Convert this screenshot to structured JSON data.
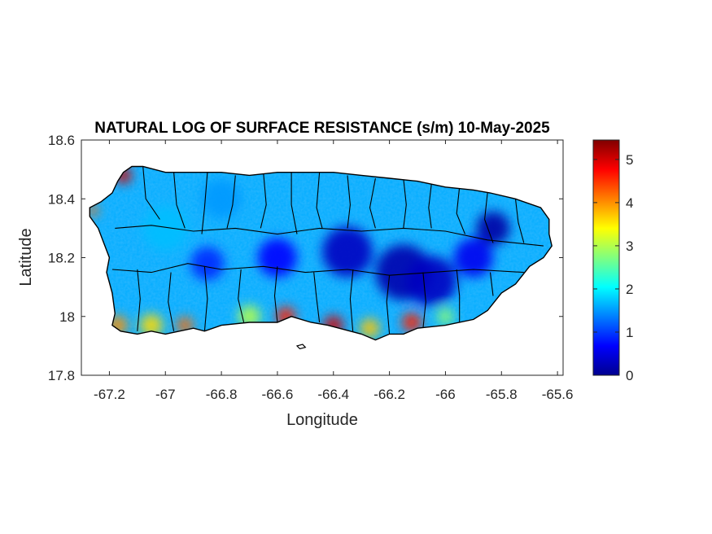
{
  "map": {
    "title": "NATURAL LOG OF SURFACE RESISTANCE (s/m) 10-May-2025",
    "xlabel": "Longitude",
    "ylabel": "Latitude",
    "xlim": [
      -67.3,
      -65.58
    ],
    "ylim": [
      17.8,
      18.6
    ],
    "xticks": [
      -67.2,
      -67.0,
      -66.8,
      -66.6,
      -66.4,
      -66.2,
      -66.0,
      -65.8,
      -65.6
    ],
    "xtick_labels": [
      "-67.2",
      "-67",
      "-66.8",
      "-66.6",
      "-66.4",
      "-66.2",
      "-66",
      "-65.8",
      "-65.6"
    ],
    "yticks": [
      17.8,
      18.0,
      18.2,
      18.4,
      18.6
    ],
    "ytick_labels": [
      "17.8",
      "18",
      "18.2",
      "18.4",
      "18.6"
    ],
    "colormap": "jet",
    "background_color": "#ffffff",
    "outline_color": "#000000",
    "colorbar": {
      "limits": [
        0,
        5.45
      ],
      "ticks": [
        0,
        1,
        2,
        3,
        4,
        5
      ],
      "tick_labels": [
        "0",
        "1",
        "2",
        "3",
        "4",
        "5"
      ]
    },
    "island_outline": [
      [
        -67.27,
        18.37
      ],
      [
        -67.23,
        18.39
      ],
      [
        -67.19,
        18.42
      ],
      [
        -67.17,
        18.46
      ],
      [
        -67.15,
        18.49
      ],
      [
        -67.12,
        18.51
      ],
      [
        -67.08,
        18.51
      ],
      [
        -67.0,
        18.49
      ],
      [
        -66.9,
        18.49
      ],
      [
        -66.8,
        18.49
      ],
      [
        -66.7,
        18.48
      ],
      [
        -66.6,
        18.49
      ],
      [
        -66.5,
        18.49
      ],
      [
        -66.4,
        18.49
      ],
      [
        -66.3,
        18.48
      ],
      [
        -66.2,
        18.47
      ],
      [
        -66.1,
        18.46
      ],
      [
        -66.0,
        18.44
      ],
      [
        -65.9,
        18.43
      ],
      [
        -65.84,
        18.42
      ],
      [
        -65.75,
        18.4
      ],
      [
        -65.66,
        18.37
      ],
      [
        -65.63,
        18.33
      ],
      [
        -65.63,
        18.28
      ],
      [
        -65.62,
        18.24
      ],
      [
        -65.65,
        18.2
      ],
      [
        -65.7,
        18.17
      ],
      [
        -65.75,
        18.11
      ],
      [
        -65.8,
        18.08
      ],
      [
        -65.85,
        18.02
      ],
      [
        -65.9,
        17.99
      ],
      [
        -66.0,
        17.97
      ],
      [
        -66.1,
        17.96
      ],
      [
        -66.15,
        17.94
      ],
      [
        -66.2,
        17.94
      ],
      [
        -66.25,
        17.92
      ],
      [
        -66.3,
        17.94
      ],
      [
        -66.38,
        17.96
      ],
      [
        -66.42,
        17.97
      ],
      [
        -66.48,
        17.98
      ],
      [
        -66.55,
        18.0
      ],
      [
        -66.6,
        17.98
      ],
      [
        -66.7,
        17.98
      ],
      [
        -66.8,
        17.97
      ],
      [
        -66.86,
        17.95
      ],
      [
        -66.9,
        17.96
      ],
      [
        -66.95,
        17.95
      ],
      [
        -67.0,
        17.94
      ],
      [
        -67.05,
        17.95
      ],
      [
        -67.1,
        17.94
      ],
      [
        -67.16,
        17.95
      ],
      [
        -67.19,
        17.97
      ],
      [
        -67.18,
        18.01
      ],
      [
        -67.19,
        18.08
      ],
      [
        -67.21,
        18.15
      ],
      [
        -67.2,
        18.2
      ],
      [
        -67.22,
        18.25
      ],
      [
        -67.24,
        18.3
      ],
      [
        -67.27,
        18.34
      ]
    ],
    "caja_de_muerto_outline": [
      [
        -66.53,
        17.9
      ],
      [
        -66.51,
        17.905
      ],
      [
        -66.5,
        17.895
      ],
      [
        -66.52,
        17.89
      ]
    ],
    "intensity_hotspots": [
      {
        "lon": -67.15,
        "lat": 18.48,
        "value": 5.0,
        "radius": 0.03
      },
      {
        "lon": -67.26,
        "lat": 18.36,
        "value": 4.2,
        "radius": 0.02
      },
      {
        "lon": -67.17,
        "lat": 17.97,
        "value": 4.0,
        "radius": 0.035
      },
      {
        "lon": -67.05,
        "lat": 17.97,
        "value": 3.6,
        "radius": 0.04
      },
      {
        "lon": -66.93,
        "lat": 17.97,
        "value": 4.2,
        "radius": 0.03
      },
      {
        "lon": -66.7,
        "lat": 18.0,
        "value": 3.0,
        "radius": 0.04
      },
      {
        "lon": -66.57,
        "lat": 18.0,
        "value": 4.6,
        "radius": 0.035
      },
      {
        "lon": -66.4,
        "lat": 17.97,
        "value": 5.0,
        "radius": 0.035
      },
      {
        "lon": -66.27,
        "lat": 17.96,
        "value": 3.7,
        "radius": 0.035
      },
      {
        "lon": -66.12,
        "lat": 17.98,
        "value": 4.6,
        "radius": 0.035
      },
      {
        "lon": -66.0,
        "lat": 18.0,
        "value": 2.8,
        "radius": 0.03
      },
      {
        "lon": -66.35,
        "lat": 18.22,
        "value": 0.35,
        "radius": 0.09
      },
      {
        "lon": -66.15,
        "lat": 18.15,
        "value": 0.25,
        "radius": 0.1
      },
      {
        "lon": -66.05,
        "lat": 18.12,
        "value": 0.35,
        "radius": 0.09
      },
      {
        "lon": -65.83,
        "lat": 18.3,
        "value": 0.2,
        "radius": 0.06
      },
      {
        "lon": -66.6,
        "lat": 18.2,
        "value": 0.7,
        "radius": 0.07
      },
      {
        "lon": -66.85,
        "lat": 18.18,
        "value": 0.9,
        "radius": 0.06
      },
      {
        "lon": -65.9,
        "lat": 18.2,
        "value": 0.6,
        "radius": 0.07
      },
      {
        "lon": -67.0,
        "lat": 18.3,
        "value": 1.7,
        "radius": 0.08
      },
      {
        "lon": -66.8,
        "lat": 18.4,
        "value": 1.5,
        "radius": 0.07
      }
    ],
    "municipality_boundaries": [
      [
        [
          -67.08,
          18.51
        ],
        [
          -67.07,
          18.4
        ],
        [
          -67.02,
          18.33
        ]
      ],
      [
        [
          -66.97,
          18.49
        ],
        [
          -66.96,
          18.38
        ],
        [
          -66.93,
          18.3
        ]
      ],
      [
        [
          -66.85,
          18.49
        ],
        [
          -66.86,
          18.37
        ],
        [
          -66.87,
          18.28
        ]
      ],
      [
        [
          -66.75,
          18.48
        ],
        [
          -66.76,
          18.38
        ],
        [
          -66.78,
          18.3
        ]
      ],
      [
        [
          -66.65,
          18.49
        ],
        [
          -66.64,
          18.38
        ],
        [
          -66.66,
          18.3
        ]
      ],
      [
        [
          -66.55,
          18.49
        ],
        [
          -66.55,
          18.38
        ],
        [
          -66.53,
          18.28
        ]
      ],
      [
        [
          -66.45,
          18.49
        ],
        [
          -66.46,
          18.37
        ],
        [
          -66.44,
          18.3
        ]
      ],
      [
        [
          -66.35,
          18.48
        ],
        [
          -66.34,
          18.38
        ],
        [
          -66.35,
          18.3
        ]
      ],
      [
        [
          -66.25,
          18.47
        ],
        [
          -66.27,
          18.37
        ],
        [
          -66.25,
          18.3
        ]
      ],
      [
        [
          -66.15,
          18.47
        ],
        [
          -66.14,
          18.38
        ],
        [
          -66.15,
          18.3
        ]
      ],
      [
        [
          -66.05,
          18.45
        ],
        [
          -66.06,
          18.37
        ],
        [
          -66.05,
          18.3
        ]
      ],
      [
        [
          -65.95,
          18.44
        ],
        [
          -65.96,
          18.35
        ],
        [
          -65.93,
          18.28
        ]
      ],
      [
        [
          -65.85,
          18.42
        ],
        [
          -65.86,
          18.33
        ],
        [
          -65.83,
          18.25
        ]
      ],
      [
        [
          -65.75,
          18.4
        ],
        [
          -65.74,
          18.32
        ],
        [
          -65.72,
          18.25
        ]
      ],
      [
        [
          -67.18,
          18.3
        ],
        [
          -67.05,
          18.31
        ],
        [
          -66.9,
          18.29
        ],
        [
          -66.75,
          18.3
        ],
        [
          -66.6,
          18.28
        ],
        [
          -66.45,
          18.3
        ],
        [
          -66.3,
          18.29
        ],
        [
          -66.15,
          18.3
        ],
        [
          -66.0,
          18.29
        ],
        [
          -65.85,
          18.26
        ],
        [
          -65.65,
          18.24
        ]
      ],
      [
        [
          -67.19,
          18.16
        ],
        [
          -67.05,
          18.15
        ],
        [
          -66.92,
          18.18
        ],
        [
          -66.8,
          18.16
        ],
        [
          -66.65,
          18.17
        ],
        [
          -66.5,
          18.15
        ],
        [
          -66.35,
          18.16
        ],
        [
          -66.2,
          18.14
        ],
        [
          -66.05,
          18.15
        ],
        [
          -65.9,
          18.16
        ],
        [
          -65.72,
          18.15
        ]
      ],
      [
        [
          -67.1,
          18.16
        ],
        [
          -67.09,
          18.06
        ],
        [
          -67.1,
          17.95
        ]
      ],
      [
        [
          -66.98,
          18.15
        ],
        [
          -66.99,
          18.05
        ],
        [
          -66.97,
          17.95
        ]
      ],
      [
        [
          -66.86,
          18.17
        ],
        [
          -66.85,
          18.06
        ],
        [
          -66.86,
          17.95
        ]
      ],
      [
        [
          -66.73,
          18.16
        ],
        [
          -66.74,
          18.06
        ],
        [
          -66.72,
          17.98
        ]
      ],
      [
        [
          -66.6,
          18.17
        ],
        [
          -66.61,
          18.07
        ],
        [
          -66.6,
          17.98
        ]
      ],
      [
        [
          -66.47,
          18.15
        ],
        [
          -66.46,
          18.06
        ],
        [
          -66.45,
          17.98
        ]
      ],
      [
        [
          -66.33,
          18.16
        ],
        [
          -66.34,
          18.06
        ],
        [
          -66.33,
          17.94
        ]
      ],
      [
        [
          -66.2,
          18.14
        ],
        [
          -66.21,
          18.05
        ],
        [
          -66.2,
          17.94
        ]
      ],
      [
        [
          -66.08,
          18.15
        ],
        [
          -66.07,
          18.05
        ],
        [
          -66.08,
          17.96
        ]
      ],
      [
        [
          -65.96,
          18.16
        ],
        [
          -65.95,
          18.07
        ],
        [
          -65.95,
          17.98
        ]
      ],
      [
        [
          -65.84,
          18.15
        ],
        [
          -65.83,
          18.07
        ]
      ]
    ]
  }
}
